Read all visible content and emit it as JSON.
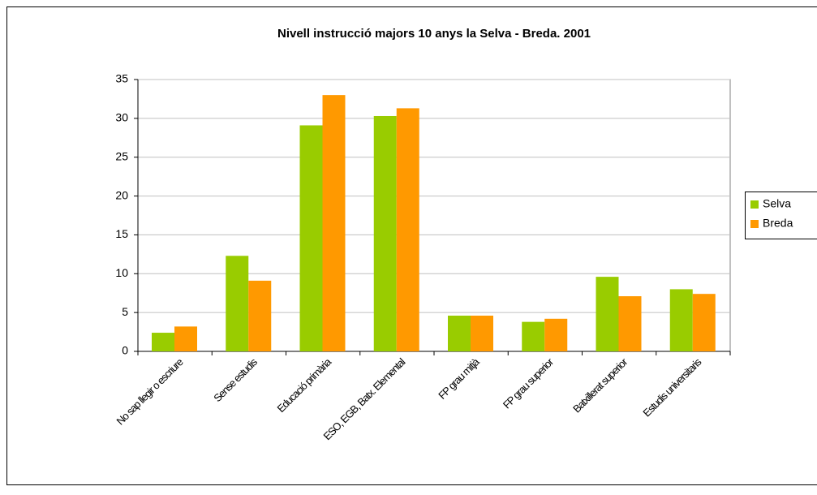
{
  "chart_data": {
    "type": "bar",
    "title": "Nivell instrucció majors 10 anys la Selva - Breda. 2001",
    "categories": [
      "No sap llegir o escriure",
      "Sense estudis",
      "Educació primària",
      "ESO, EGB, Batx. Elemental",
      "FP grau mitjà",
      "FP grau superior",
      "Batxillerat superior",
      "Estudis universitaris"
    ],
    "series": [
      {
        "name": "Selva",
        "color": "#99cc00",
        "values": [
          2.4,
          12.3,
          29.1,
          30.3,
          4.6,
          3.8,
          9.6,
          8.0
        ]
      },
      {
        "name": "Breda",
        "color": "#ff9900",
        "values": [
          3.2,
          9.1,
          33.0,
          31.3,
          4.6,
          4.2,
          7.1,
          7.4
        ]
      }
    ],
    "ylim": [
      0,
      35
    ],
    "yticks": [
      0,
      5,
      10,
      15,
      20,
      25,
      30,
      35
    ],
    "grid": true,
    "legend": "right"
  }
}
